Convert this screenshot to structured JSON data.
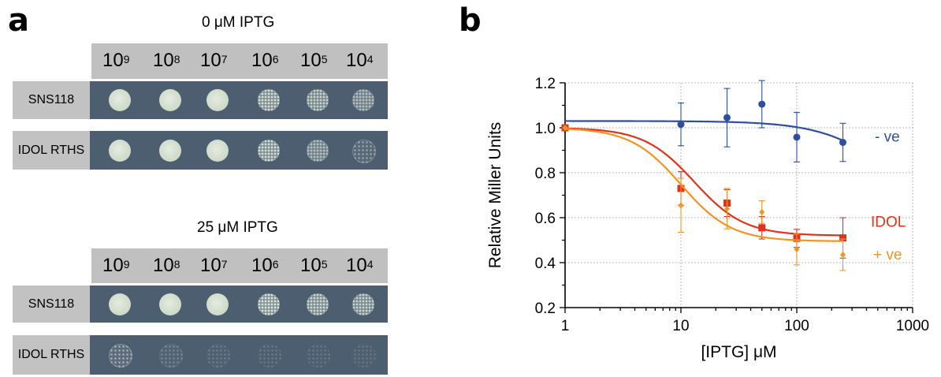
{
  "panel_a": {
    "letter": "a",
    "groups": [
      {
        "title": "0 μM IPTG",
        "dilutions": [
          {
            "base": "10",
            "exp": "9"
          },
          {
            "base": "10",
            "exp": "8"
          },
          {
            "base": "10",
            "exp": "7"
          },
          {
            "base": "10",
            "exp": "6"
          },
          {
            "base": "10",
            "exp": "5"
          },
          {
            "base": "10",
            "exp": "4"
          }
        ],
        "strains": [
          {
            "label": "SNS118",
            "growth": [
              1,
              1,
              1,
              0.85,
              0.75,
              0.6
            ]
          },
          {
            "label": "IDOL RTHS",
            "growth": [
              1,
              1,
              1,
              0.85,
              0.6,
              0.35
            ]
          }
        ]
      },
      {
        "title": "25 μM IPTG",
        "dilutions": [
          {
            "base": "10",
            "exp": "9"
          },
          {
            "base": "10",
            "exp": "8"
          },
          {
            "base": "10",
            "exp": "7"
          },
          {
            "base": "10",
            "exp": "6"
          },
          {
            "base": "10",
            "exp": "5"
          },
          {
            "base": "10",
            "exp": "4"
          }
        ],
        "strains": [
          {
            "label": "SNS118",
            "growth": [
              1,
              1,
              1,
              0.9,
              0.8,
              0.75
            ]
          },
          {
            "label": "IDOL RTHS",
            "growth": [
              0.45,
              0.15,
              0.08,
              0.06,
              0.05,
              0.04
            ]
          }
        ]
      }
    ]
  },
  "panel_b": {
    "letter": "b"
  },
  "chart_data": {
    "type": "scatter",
    "xlabel": "[IPTG] μM",
    "ylabel": "Relative Miller Units",
    "xscale": "log",
    "xlim": [
      1,
      1000
    ],
    "ylim": [
      0.2,
      1.2
    ],
    "xticks": [
      1,
      10,
      100,
      1000
    ],
    "xtick_labels": [
      "1",
      "10",
      "100",
      "1000"
    ],
    "yticks": [
      0.2,
      0.4,
      0.6,
      0.8,
      1.0,
      1.2
    ],
    "ytick_labels": [
      "0.2",
      "0.4",
      "0.6",
      "0.8",
      "1.0",
      "1.2"
    ],
    "grid": true,
    "legend": "inline labels at right end of curves",
    "series": [
      {
        "name": "- ve",
        "color": "#2e4fa0",
        "marker": "circle",
        "x": [
          1,
          10,
          25,
          50,
          100,
          250
        ],
        "y": [
          1.0,
          1.015,
          1.045,
          1.105,
          0.958,
          0.935
        ],
        "err": [
          0,
          0.095,
          0.13,
          0.105,
          0.11,
          0.085
        ],
        "fit": {
          "top": 1.03,
          "bottom": 0.5,
          "ic50": 800,
          "hill": 1.4
        }
      },
      {
        "name": "IDOL",
        "color": "#e0331e",
        "marker": "square",
        "x": [
          1,
          10,
          25,
          50,
          100,
          250
        ],
        "y": [
          1.0,
          0.73,
          0.665,
          0.555,
          0.508,
          0.51
        ],
        "err": [
          0,
          0.075,
          0.06,
          0.05,
          0.04,
          0.09
        ],
        "fit": {
          "top": 1.0,
          "bottom": 0.52,
          "ic50": 13,
          "hill": 2.0
        }
      },
      {
        "name": "+ ve",
        "color": "#f39320",
        "marker": "diamond",
        "x": [
          1,
          10,
          25,
          50,
          100,
          250
        ],
        "y": [
          1.0,
          0.655,
          0.64,
          0.625,
          0.46,
          0.435
        ],
        "err": [
          0,
          0.12,
          0.09,
          0.05,
          0.07,
          0.07
        ],
        "fit": {
          "top": 1.0,
          "bottom": 0.495,
          "ic50": 10,
          "hill": 2.0
        }
      }
    ]
  }
}
